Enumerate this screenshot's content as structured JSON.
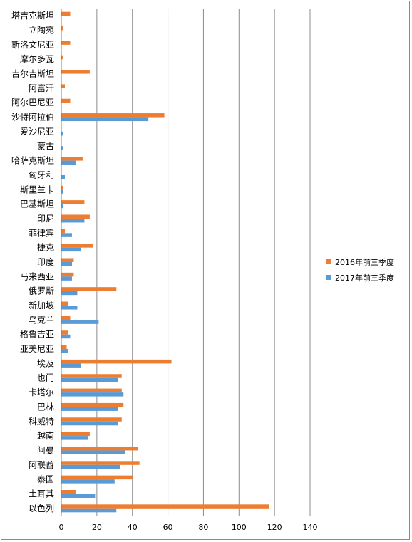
{
  "chart_data": {
    "type": "bar",
    "orientation": "horizontal",
    "categories": [
      "塔吉克斯坦",
      "立陶宛",
      "斯洛文尼亚",
      "摩尔多瓦",
      "吉尔吉斯坦",
      "阿富汗",
      "阿尔巴尼亚",
      "沙特阿拉伯",
      "爱沙尼亚",
      "蒙古",
      "哈萨克斯坦",
      "匈牙利",
      "斯里兰卡",
      "巴基斯坦",
      "印尼",
      "菲律宾",
      "捷克",
      "印度",
      "马来西亚",
      "俄罗斯",
      "新加坡",
      "乌克兰",
      "格鲁吉亚",
      "亚美尼亚",
      "埃及",
      "也门",
      "卡塔尔",
      "巴林",
      "科威特",
      "越南",
      "阿曼",
      "阿联酋",
      "泰国",
      "土耳其",
      "以色列"
    ],
    "series": [
      {
        "name": "2016年前三季度",
        "color": "#ED7D31",
        "values": [
          5,
          1,
          5,
          1,
          16,
          2,
          5,
          58,
          0,
          0,
          12,
          0,
          1,
          13,
          16,
          2,
          18,
          7,
          7,
          31,
          4,
          5,
          4,
          3,
          62,
          34,
          34,
          35,
          34,
          16,
          43,
          44,
          40,
          8,
          117
        ]
      },
      {
        "name": "2017年前三季度",
        "color": "#5B9BD5",
        "values": [
          0,
          0,
          0,
          0,
          0,
          0,
          0,
          49,
          1,
          1,
          8,
          2,
          1,
          1,
          13,
          6,
          11,
          6,
          6,
          9,
          9,
          21,
          5,
          4,
          11,
          32,
          35,
          32,
          32,
          15,
          36,
          33,
          30,
          19,
          31
        ]
      }
    ],
    "xlim": [
      0,
      140
    ],
    "xticks": [
      0,
      20,
      40,
      60,
      80,
      100,
      120,
      140
    ],
    "grid": true,
    "legend_position": "right",
    "title": "",
    "xlabel": "",
    "ylabel": ""
  }
}
